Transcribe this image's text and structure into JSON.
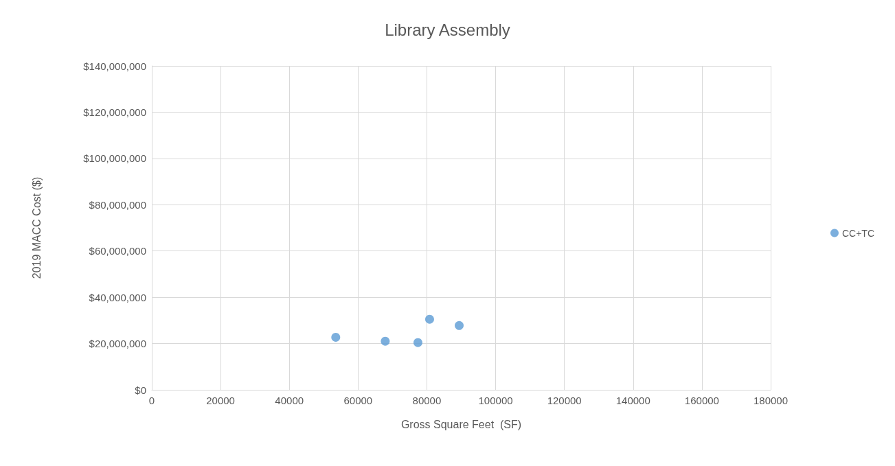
{
  "chart_data": {
    "type": "scatter",
    "title": "Library Assembly",
    "xlabel": "Gross Square Feet  (SF)",
    "ylabel": "2019 MACC Cost ($)",
    "x": [
      53500,
      67900,
      77400,
      80800,
      89400
    ],
    "series": [
      {
        "name": "CC+TC",
        "color": "#5b9bd5",
        "values": [
          22700000,
          21000000,
          20400000,
          30500000,
          27800000
        ]
      }
    ],
    "xlim": [
      0,
      180000
    ],
    "xticks": [
      0,
      20000,
      40000,
      60000,
      80000,
      100000,
      120000,
      140000,
      160000,
      180000
    ],
    "ylim": [
      0,
      140000000
    ],
    "yticks": [
      {
        "value": 0,
        "label": "$0"
      },
      {
        "value": 20000000,
        "label": "$20,000,000"
      },
      {
        "value": 40000000,
        "label": "$40,000,000"
      },
      {
        "value": 60000000,
        "label": "$60,000,000"
      },
      {
        "value": 80000000,
        "label": "$80,000,000"
      },
      {
        "value": 100000000,
        "label": "$100,000,000"
      },
      {
        "value": 120000000,
        "label": "$120,000,000"
      },
      {
        "value": 140000000,
        "label": "$140,000,000"
      }
    ],
    "grid": true,
    "legend": "right",
    "marker": "circle"
  }
}
